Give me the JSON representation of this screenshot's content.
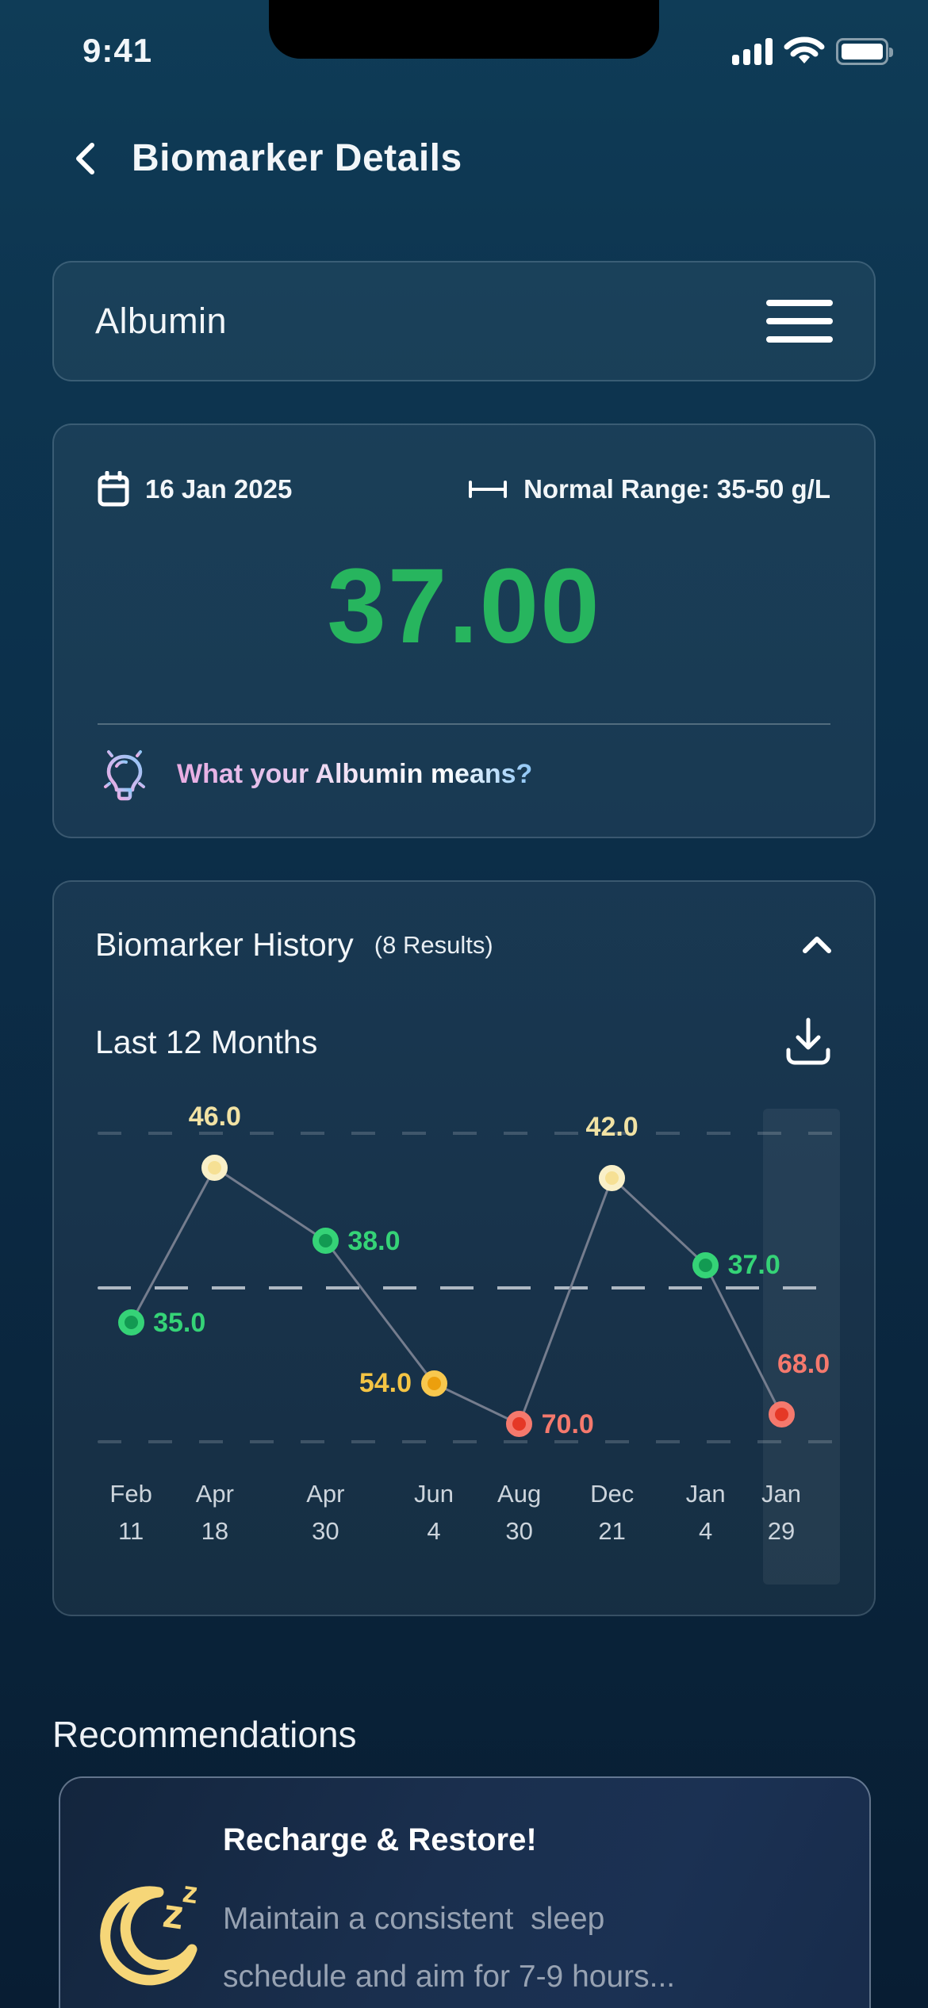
{
  "status_bar": {
    "time": "9:41"
  },
  "header": {
    "title": "Biomarker Details"
  },
  "icons": {
    "back": "chevron-left",
    "menu": "hamburger",
    "date": "calendar",
    "range": "range-bar",
    "insight": "lightbulb",
    "collapse": "chevron-up",
    "export": "download",
    "sleep": "crescent-moon-zzz",
    "status": [
      "signal-bars",
      "wifi",
      "battery-full"
    ]
  },
  "biomarker_card": {
    "name": "Albumin"
  },
  "reading_card": {
    "date": "16 Jan 2025",
    "range_label": "Normal Range: 35-50 g/L",
    "value": "37.00",
    "value_color": "#27b55e",
    "info_text": "What your Albumin means?"
  },
  "history_card": {
    "title": "Biomarker History",
    "results": "(8 Results)",
    "period": "Last 12 Months"
  },
  "chart_data": {
    "type": "line",
    "unit": "g/L",
    "normal_range": [
      35,
      50
    ],
    "legend": "none",
    "grid": "three horizontal dashed lines, middle line bright",
    "points": [
      {
        "date_month": "Feb",
        "date_day": "11",
        "value": 35.0,
        "status": "normal",
        "x_pct": 4.5,
        "y_pct": 60.8,
        "label_side": "right",
        "label_dx": 0
      },
      {
        "date_month": "Apr",
        "date_day": "18",
        "value": 46.0,
        "status": "caution",
        "x_pct": 15.8,
        "y_pct": 16.7,
        "label_side": "above",
        "label_dx": 0
      },
      {
        "date_month": "Apr",
        "date_day": "30",
        "value": 38.0,
        "status": "normal",
        "x_pct": 30.7,
        "y_pct": 37.5,
        "label_side": "right",
        "label_dx": 0
      },
      {
        "date_month": "Jun",
        "date_day": "4",
        "value": 54.0,
        "status": "warning",
        "x_pct": 45.3,
        "y_pct": 78.0,
        "label_side": "left",
        "label_dx": 0
      },
      {
        "date_month": "Aug",
        "date_day": "30",
        "value": 70.0,
        "status": "critical",
        "x_pct": 56.8,
        "y_pct": 89.6,
        "label_side": "right",
        "label_dx": 0
      },
      {
        "date_month": "Dec",
        "date_day": "21",
        "value": 42.0,
        "status": "caution",
        "x_pct": 69.3,
        "y_pct": 19.6,
        "label_side": "above",
        "label_dx": 0
      },
      {
        "date_month": "Jan",
        "date_day": "4",
        "value": 37.0,
        "status": "normal",
        "x_pct": 81.9,
        "y_pct": 44.4,
        "label_side": "right",
        "label_dx": 0
      },
      {
        "date_month": "Jan",
        "date_day": "29",
        "value": 68.0,
        "status": "critical",
        "x_pct": 92.1,
        "y_pct": 86.9,
        "label_side": "above",
        "label_dx": 28
      }
    ],
    "status_colors": {
      "normal": {
        "outer": "#35d377",
        "inner": "#129a52",
        "label": "#35d377"
      },
      "caution": {
        "outer": "#f9f0c8",
        "inner": "#f6e094",
        "label": "#f1e2a4"
      },
      "warning": {
        "outer": "#f8c84e",
        "inner": "#ec9f0d",
        "label": "#f4c444"
      },
      "critical": {
        "outer": "#f5796d",
        "inner": "#e53826",
        "label": "#f5796d"
      }
    },
    "line_color": "#757d8e",
    "gridlines_y_pct": {
      "top": 7.0,
      "middle": 50.9,
      "bottom": 94.6
    },
    "highlight_last_column": {
      "x_pct": 89.6,
      "width_pct": 10.4
    }
  },
  "recommendations": {
    "heading": "Recommendations",
    "cards": [
      {
        "title": "Recharge & Restore!",
        "body": "Maintain a consistent  sleep\nschedule and aim for 7-9 hours..."
      }
    ]
  }
}
